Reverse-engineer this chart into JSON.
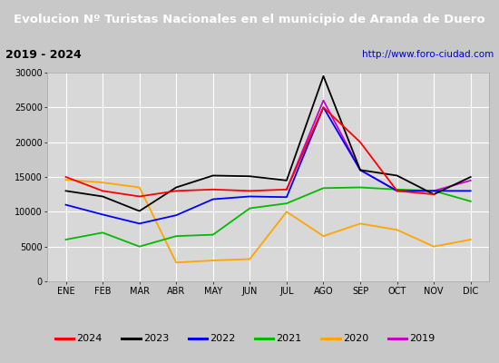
{
  "title": "Evolucion Nº Turistas Nacionales en el municipio de Aranda de Duero",
  "subtitle_left": "2019 - 2024",
  "subtitle_right": "http://www.foro-ciudad.com",
  "months": [
    "ENE",
    "FEB",
    "MAR",
    "ABR",
    "MAY",
    "JUN",
    "JUL",
    "AGO",
    "SEP",
    "OCT",
    "NOV",
    "DIC"
  ],
  "series": {
    "2024": {
      "color": "#ff0000",
      "data": [
        15000,
        13000,
        12200,
        13000,
        13200,
        13000,
        13200,
        25000,
        20000,
        13000,
        12500,
        null
      ]
    },
    "2023": {
      "color": "#000000",
      "data": [
        13000,
        12200,
        10100,
        13500,
        15200,
        15100,
        14500,
        29500,
        16000,
        15200,
        12500,
        15000
      ]
    },
    "2022": {
      "color": "#0000ff",
      "data": [
        11000,
        9600,
        8300,
        9500,
        11800,
        12200,
        12100,
        25000,
        16000,
        13000,
        13000,
        13000
      ]
    },
    "2021": {
      "color": "#00bb00",
      "data": [
        6000,
        7000,
        5000,
        6500,
        6700,
        10500,
        11200,
        13400,
        13500,
        13200,
        13000,
        11500
      ]
    },
    "2020": {
      "color": "#ffa500",
      "data": [
        14600,
        14200,
        13500,
        2700,
        3000,
        3200,
        10000,
        6500,
        8300,
        7400,
        5000,
        6000
      ]
    },
    "2019": {
      "color": "#cc00cc",
      "data": [
        null,
        null,
        null,
        null,
        null,
        null,
        13200,
        26000,
        16000,
        13000,
        13000,
        14500
      ]
    }
  },
  "ylim": [
    0,
    30000
  ],
  "yticks": [
    0,
    5000,
    10000,
    15000,
    20000,
    25000,
    30000
  ],
  "fig_bg": "#c8c8c8",
  "plot_bg": "#d8d8d8",
  "title_bg": "#4f81c7",
  "title_color": "#ffffff",
  "header_bg": "#cccccc",
  "grid_color": "#ffffff",
  "legend_bg": "#f0f0f0",
  "legend_order": [
    "2024",
    "2023",
    "2022",
    "2021",
    "2020",
    "2019"
  ],
  "title_fontsize": 9.5,
  "tick_fontsize": 7,
  "legend_fontsize": 8
}
